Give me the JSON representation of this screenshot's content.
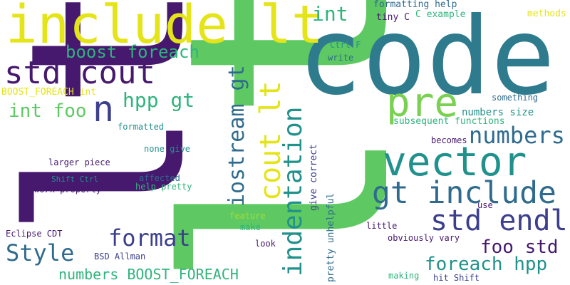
{
  "palette": {
    "dark_purple": "#46186e",
    "indigo": "#3b3f8c",
    "blue": "#2f6b8e",
    "teal": "#21918c",
    "green": "#2fb47c",
    "light_green": "#5ec962",
    "yellow_green": "#a5db36",
    "yellow": "#e4e419",
    "background": "#ffffff"
  },
  "words": [
    {
      "text": "lt"
    },
    {
      "text": "code"
    },
    {
      "text": "lt"
    },
    {
      "text": "include lt"
    },
    {
      "text": "std cout"
    },
    {
      "text": "vector"
    },
    {
      "text": "gt include"
    },
    {
      "text": "std endl"
    },
    {
      "text": "pre"
    },
    {
      "text": "n"
    },
    {
      "text": "numbers"
    },
    {
      "text": "format"
    },
    {
      "text": "Style"
    },
    {
      "text": "boost foreach"
    },
    {
      "text": "int foo"
    },
    {
      "text": "hpp gt"
    },
    {
      "text": "int"
    },
    {
      "text": "foreach hpp"
    },
    {
      "text": "foo std"
    },
    {
      "text": "numbers BOOST_FOREACH"
    },
    {
      "text": "iostream gt"
    },
    {
      "text": "cout lt"
    },
    {
      "text": "indentation"
    },
    {
      "text": "BOOST_FOREACH int"
    },
    {
      "text": "numbers size"
    },
    {
      "text": "subsequent functions"
    },
    {
      "text": "formatting help"
    },
    {
      "text": "tiny C"
    },
    {
      "text": "C example"
    },
    {
      "text": "methods"
    },
    {
      "text": "Ctrl F"
    },
    {
      "text": "write"
    },
    {
      "text": "something"
    },
    {
      "text": "becomes"
    },
    {
      "text": "formatted"
    },
    {
      "text": "none give"
    },
    {
      "text": "larger piece"
    },
    {
      "text": "Shift Ctrl"
    },
    {
      "text": "affected"
    },
    {
      "text": "help pretty"
    },
    {
      "text": "work properly"
    },
    {
      "text": "give correct"
    },
    {
      "text": "pretty unhelpful"
    },
    {
      "text": "feature"
    },
    {
      "text": "make"
    },
    {
      "text": "look"
    },
    {
      "text": "little"
    },
    {
      "text": "obviously vary"
    },
    {
      "text": "use"
    },
    {
      "text": "Eclipse CDT"
    },
    {
      "text": "BSD Allman"
    },
    {
      "text": "making"
    },
    {
      "text": "hit Shift"
    }
  ]
}
